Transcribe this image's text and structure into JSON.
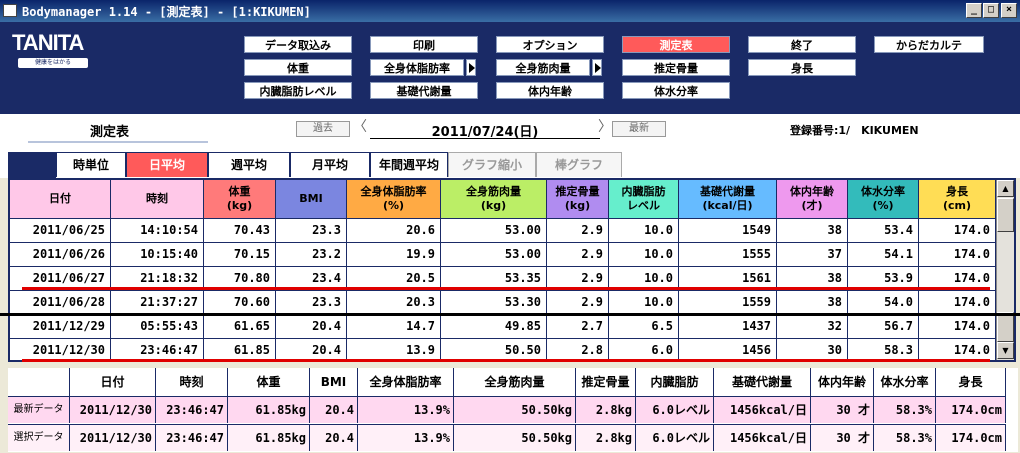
{
  "window": {
    "title": "Bodymanager 1.14 - [測定表] - [1:KIKUMEN]",
    "minimize": "_",
    "maximize": "□",
    "close": "×"
  },
  "brand": {
    "logo": "TANITA",
    "tagline": "健康をはかる"
  },
  "menu": {
    "row1": [
      "データ取込み",
      "印刷",
      "オプション",
      "測定表",
      "終了",
      "からだカルテ"
    ],
    "row2": [
      "体重",
      "全身体脂肪率",
      "全身筋肉量",
      "推定骨量",
      "身長"
    ],
    "row3": [
      "内臓脂肪レベル",
      "基礎代謝量",
      "体内年齢",
      "体水分率"
    ],
    "active": "測定表"
  },
  "nav": {
    "page_title": "測定表",
    "prev": "過去",
    "next": "最新",
    "current_date": "2011/07/24(日)",
    "registration": "登録番号:1/　KIKUMEN"
  },
  "tabs": [
    "時単位",
    "日平均",
    "週平均",
    "月平均",
    "年間週平均",
    "グラフ縮小",
    "棒グラフ"
  ],
  "active_tab": "日平均",
  "table": {
    "headers": [
      "日付",
      "時刻",
      "体重\n(kg)",
      "BMI",
      "全身体脂肪率\n(%)",
      "全身筋肉量\n(kg)",
      "推定骨量\n(kg)",
      "内臓脂肪\nレベル",
      "基礎代謝量\n(kcal/日)",
      "体内年齢\n(才)",
      "体水分率\n(%)",
      "身長\n(cm)"
    ],
    "header_colors": [
      "#ffc8e8",
      "#ffc8e8",
      "#ff7a7a",
      "#7b86e0",
      "#ffaa44",
      "#bbee66",
      "#b08cf0",
      "#66eecc",
      "#66bbff",
      "#ee99ee",
      "#33bbbb",
      "#ffdd55"
    ],
    "rows": [
      [
        "2011/06/25",
        "14:10:54",
        "70.43",
        "23.3",
        "20.6",
        "53.00",
        "2.9",
        "10.0",
        "1549",
        "38",
        "53.4",
        "174.0"
      ],
      [
        "2011/06/26",
        "10:15:40",
        "70.15",
        "23.2",
        "19.9",
        "53.00",
        "2.9",
        "10.0",
        "1555",
        "37",
        "54.1",
        "174.0"
      ],
      [
        "2011/06/27",
        "21:18:32",
        "70.80",
        "23.4",
        "20.5",
        "53.35",
        "2.9",
        "10.0",
        "1561",
        "38",
        "53.9",
        "174.0"
      ],
      [
        "2011/06/28",
        "21:37:27",
        "70.60",
        "23.3",
        "20.3",
        "53.30",
        "2.9",
        "10.0",
        "1559",
        "38",
        "54.0",
        "174.0"
      ],
      [
        "2011/12/29",
        "05:55:43",
        "61.65",
        "20.4",
        "14.7",
        "49.85",
        "2.7",
        "6.5",
        "1437",
        "32",
        "56.7",
        "174.0"
      ],
      [
        "2011/12/30",
        "23:46:47",
        "61.85",
        "20.4",
        "13.9",
        "50.50",
        "2.8",
        "6.0",
        "1456",
        "30",
        "58.3",
        "174.0"
      ]
    ]
  },
  "summary": {
    "headers": [
      "日付",
      "時刻",
      "体重",
      "BMI",
      "全身体脂肪率",
      "全身筋肉量",
      "推定骨量",
      "内臓脂肪",
      "基礎代謝量",
      "体内年齢",
      "体水分率",
      "身長"
    ],
    "rows": [
      {
        "label": "最新データ",
        "bg": "#ffd8f0",
        "values": [
          "2011/12/30",
          "23:46:47",
          "61.85kg",
          "20.4",
          "13.9%",
          "50.50kg",
          "2.8kg",
          "6.0レベル",
          "1456kcal/日",
          "30 才",
          "58.3%",
          "174.0cm"
        ]
      },
      {
        "label": "選択データ",
        "bg": "#fff0f8",
        "values": [
          "2011/12/30",
          "23:46:47",
          "61.85kg",
          "20.4",
          "13.9%",
          "50.50kg",
          "2.8kg",
          "6.0レベル",
          "1456kcal/日",
          "30 才",
          "58.3%",
          "174.0cm"
        ]
      }
    ]
  }
}
